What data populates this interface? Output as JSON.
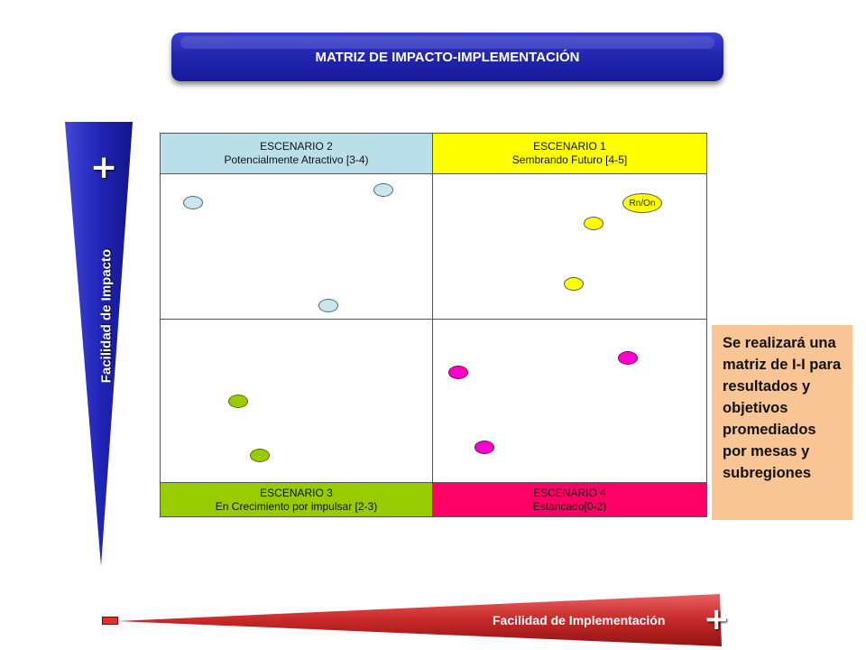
{
  "title": "MATRIZ DE  IMPACTO-IMPLEMENTACIÓN",
  "vertical_axis": {
    "label": "Facilidad de Impacto",
    "plus": "+"
  },
  "horizontal_axis": {
    "label": "Facilidad de Implementación",
    "minus": "-",
    "plus": "+"
  },
  "quadrants": {
    "q2": {
      "line1": "ESCENARIO  2",
      "line2": "Potencialmente Atractivo  [3-4)"
    },
    "q1": {
      "line1": "ESCENARIO  1",
      "line2": "Sembrando Futuro  [4-5]"
    },
    "q3": {
      "line1": "ESCENARIO  3",
      "line2": "En Crecimiento por impulsar [2-3)"
    },
    "q4": {
      "line1": "ESCENARIO  4",
      "line2": "Estancado[0-2)"
    }
  },
  "bubble_label": "Rn/On",
  "note": "Se realizará una matriz de I-I para resultados y objetivos promediados por mesas y subregiones",
  "colors": {
    "title": "#2327b0",
    "q2": "#b9e0e8",
    "q1": "#ffff00",
    "q3": "#99cc00",
    "q4": "#ff0066",
    "vertical_axis": "#2a2ec0",
    "horizontal_axis": "#c03030",
    "note": "#fac594"
  }
}
